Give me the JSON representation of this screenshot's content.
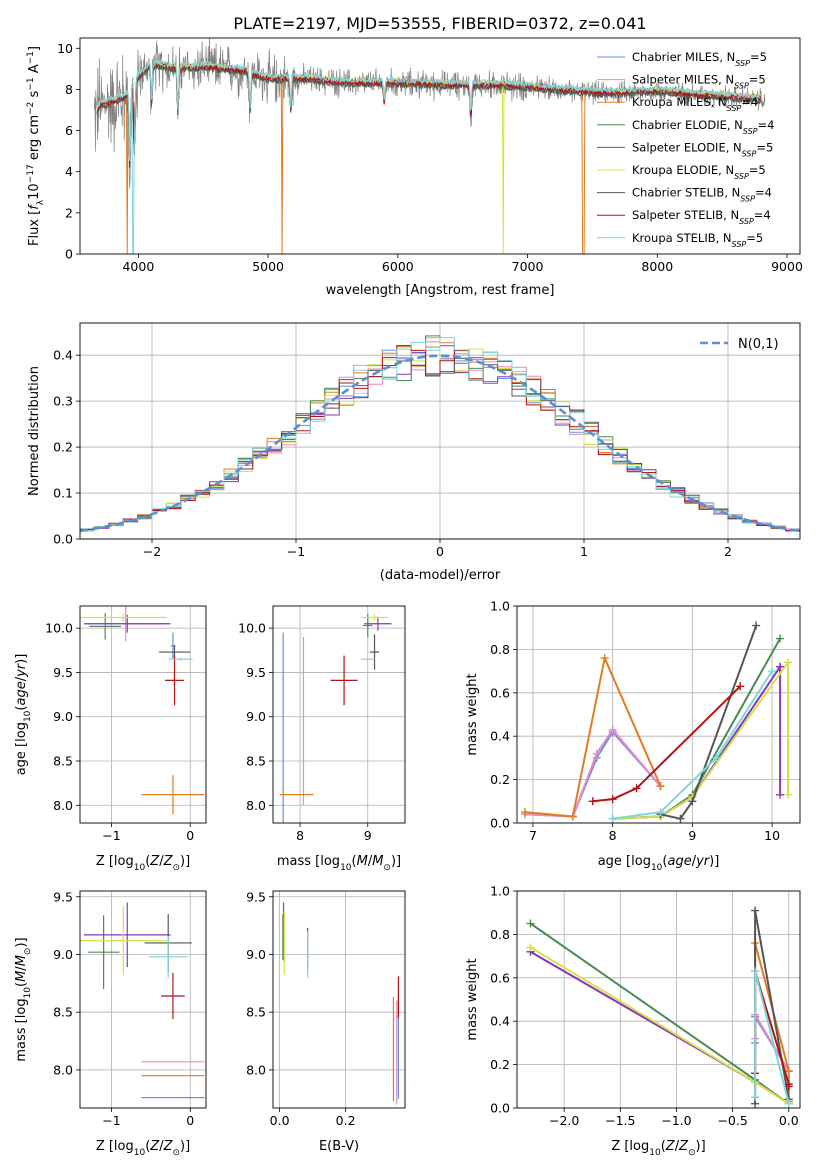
{
  "figure": {
    "title": "PLATE=2197, MJD=53555, FIBERID=0372, z=0.041"
  },
  "colors": {
    "Chabrier MILES": "#6b8fe0",
    "Salpeter MILES": "#e88cc6",
    "Kroupa MILES": "#e07b22",
    "Chabrier ELODIE": "#4a8a55",
    "Salpeter ELODIE": "#8a36b8",
    "Kroupa ELODIE": "#d6e04a",
    "Chabrier STELIB": "#555555",
    "Salpeter STELIB": "#b01414",
    "Kroupa STELIB": "#7fd6d8",
    "normal": "#5b8fd6"
  },
  "chart_data": [
    {
      "id": "spectrum",
      "type": "line",
      "xlabel": "wavelength [Angstrom, rest frame]",
      "ylabel": "Flux [f_λ 10^-17 erg cm^-2 s^-1 A^-1]",
      "xlim": [
        3550,
        9100
      ],
      "ylim": [
        0,
        10.5
      ],
      "xticks": [
        4000,
        5000,
        6000,
        7000,
        8000,
        9000
      ],
      "yticks": [
        0,
        2,
        4,
        6,
        8,
        10
      ],
      "legend_position": "right",
      "continuum": {
        "x": [
          3650,
          3700,
          3800,
          3900,
          4000,
          4100,
          4300,
          4500,
          4800,
          5000,
          5300,
          5600,
          6000,
          6400,
          6800,
          7200,
          7600,
          8000,
          8400,
          8800
        ],
        "y": [
          6.6,
          7.2,
          7.4,
          7.6,
          8.6,
          9.2,
          9.0,
          9.1,
          8.9,
          8.5,
          8.5,
          8.3,
          8.3,
          8.2,
          8.2,
          8.0,
          7.8,
          7.9,
          7.7,
          7.5
        ]
      },
      "series": [
        {
          "name": "Chabrier MILES",
          "label": "Chabrier MILES, N_SSP=5",
          "nssp": "5"
        },
        {
          "name": "Salpeter MILES",
          "label": "Salpeter MILES, N_SSP=5",
          "nssp": "5"
        },
        {
          "name": "Kroupa MILES",
          "label": "Kroupa MILES, N_SSP=4",
          "nssp": "4"
        },
        {
          "name": "Chabrier ELODIE",
          "label": "Chabrier ELODIE, N_SSP=4",
          "nssp": "4"
        },
        {
          "name": "Salpeter ELODIE",
          "label": "Salpeter ELODIE, N_SSP=5",
          "nssp": "5"
        },
        {
          "name": "Kroupa ELODIE",
          "label": "Kroupa ELODIE, N_SSP=5",
          "nssp": "5"
        },
        {
          "name": "Chabrier STELIB",
          "label": "Chabrier STELIB, N_SSP=4",
          "nssp": "4"
        },
        {
          "name": "Salpeter STELIB",
          "label": "Salpeter STELIB, N_SSP=4",
          "nssp": "4"
        },
        {
          "name": "Kroupa STELIB",
          "label": "Kroupa STELIB, N_SSP=5",
          "nssp": "5"
        }
      ]
    },
    {
      "id": "residuals",
      "type": "bar",
      "xlabel": "(data-model)/error",
      "ylabel": "Normed distribution",
      "xlim": [
        -2.5,
        2.5
      ],
      "ylim": [
        0,
        0.47
      ],
      "xticks": [
        -2,
        -1,
        0,
        1,
        2
      ],
      "yticks": [
        0.0,
        0.1,
        0.2,
        0.3,
        0.4
      ],
      "grid": true,
      "bin_width": 0.1,
      "legend": {
        "label": "N(0,1)",
        "position": "top-right"
      }
    },
    {
      "id": "age-vs-Z",
      "type": "scatter",
      "xlabel": "Z [log10(Z/Z⊙)]",
      "ylabel": "age [log10(age/yr)]",
      "xlim": [
        -1.4,
        0.2
      ],
      "ylim": [
        7.8,
        10.25
      ],
      "xticks": [
        -1,
        0
      ],
      "yticks": [
        8.0,
        8.5,
        9.0,
        9.5,
        10.0
      ],
      "grid": true,
      "points": [
        {
          "series": "Chabrier MILES",
          "x": -0.22,
          "y": 9.8,
          "xerr": 0.03,
          "yerr": 0.15
        },
        {
          "series": "Salpeter MILES",
          "x": -0.82,
          "y": 10.05,
          "xerr": 0.5,
          "yerr": 0.2
        },
        {
          "series": "Kroupa MILES",
          "x": -0.22,
          "y": 8.12,
          "xerr": 0.4,
          "yerr": 0.22
        },
        {
          "series": "Chabrier ELODIE",
          "x": -1.08,
          "y": 10.02,
          "xerr": 0.2,
          "yerr": 0.15
        },
        {
          "series": "Salpeter ELODIE",
          "x": -0.8,
          "y": 10.05,
          "xerr": 0.55,
          "yerr": 0.1
        },
        {
          "series": "Kroupa ELODIE",
          "x": -0.85,
          "y": 10.12,
          "xerr": 0.55,
          "yerr": 0.05
        },
        {
          "series": "Chabrier STELIB",
          "x": -0.2,
          "y": 9.73,
          "xerr": 0.2,
          "yerr": 0.08
        },
        {
          "series": "Salpeter STELIB",
          "x": -0.2,
          "y": 9.41,
          "xerr": 0.12,
          "yerr": 0.28
        },
        {
          "series": "Kroupa STELIB",
          "x": -0.12,
          "y": 9.65,
          "xerr": 0.15,
          "yerr": 0.02
        }
      ]
    },
    {
      "id": "age-vs-mass",
      "type": "scatter",
      "xlabel": "mass [log10(M/M⊙)]",
      "ylabel": "",
      "xlim": [
        7.6,
        9.55
      ],
      "ylim": [
        7.8,
        10.25
      ],
      "xticks": [
        8,
        9
      ],
      "yticks": [
        8.0,
        8.5,
        9.0,
        9.5,
        10.0
      ],
      "grid": true,
      "points": [
        {
          "series": "Chabrier MILES",
          "x": 7.75,
          "y": 8.85,
          "xerr": 0.0,
          "yerr": 1.1
        },
        {
          "series": "Salpeter MILES",
          "x": 8.05,
          "y": 8.95,
          "xerr": 0.0,
          "yerr": 0.95
        },
        {
          "series": "Kroupa MILES",
          "x": 7.95,
          "y": 8.12,
          "xerr": 0.25,
          "yerr": 0.0
        },
        {
          "series": "Chabrier ELODIE",
          "x": 9.0,
          "y": 10.03,
          "xerr": 0.07,
          "yerr": 0.13
        },
        {
          "series": "Salpeter ELODIE",
          "x": 9.15,
          "y": 10.05,
          "xerr": 0.2,
          "yerr": 0.08
        },
        {
          "series": "Kroupa ELODIE",
          "x": 9.1,
          "y": 10.12,
          "xerr": 0.2,
          "yerr": 0.04
        },
        {
          "series": "Chabrier STELIB",
          "x": 9.1,
          "y": 9.73,
          "xerr": 0.07,
          "yerr": 0.2
        },
        {
          "series": "Salpeter STELIB",
          "x": 8.65,
          "y": 9.41,
          "xerr": 0.2,
          "yerr": 0.28
        },
        {
          "series": "Kroupa STELIB",
          "x": 9.0,
          "y": 9.65,
          "xerr": 0.1,
          "yerr": 0.0
        }
      ]
    },
    {
      "id": "mass-weight-vs-age",
      "type": "line",
      "xlabel": "age [log10(age/yr)]",
      "ylabel": "mass weight",
      "xlim": [
        6.8,
        10.35
      ],
      "ylim": [
        0,
        1.0
      ],
      "xticks": [
        7,
        8,
        9,
        10
      ],
      "yticks": [
        0.0,
        0.2,
        0.4,
        0.6,
        0.8,
        1.0
      ],
      "grid": true,
      "series": [
        {
          "name": "Chabrier MILES",
          "x": [
            6.9,
            7.5,
            7.8,
            8.0,
            8.6
          ],
          "y": [
            0.04,
            0.03,
            0.3,
            0.42,
            0.17
          ]
        },
        {
          "name": "Salpeter MILES",
          "x": [
            6.9,
            7.5,
            7.8,
            8.0,
            8.6
          ],
          "y": [
            0.04,
            0.03,
            0.32,
            0.43,
            0.17
          ]
        },
        {
          "name": "Kroupa MILES",
          "x": [
            6.9,
            7.5,
            7.9,
            8.6
          ],
          "y": [
            0.05,
            0.03,
            0.76,
            0.17
          ]
        },
        {
          "name": "Chabrier ELODIE",
          "x": [
            8.0,
            8.6,
            9.0,
            10.1
          ],
          "y": [
            0.02,
            0.03,
            0.13,
            0.85
          ]
        },
        {
          "name": "Salpeter ELODIE",
          "x": [
            8.0,
            8.6,
            9.0,
            10.1,
            10.1
          ],
          "y": [
            0.02,
            0.03,
            0.12,
            0.72,
            0.13
          ]
        },
        {
          "name": "Kroupa ELODIE",
          "x": [
            8.0,
            8.6,
            9.0,
            10.2,
            10.2
          ],
          "y": [
            0.02,
            0.03,
            0.12,
            0.74,
            0.13
          ]
        },
        {
          "name": "Chabrier STELIB",
          "x": [
            8.6,
            8.85,
            9.0,
            9.8
          ],
          "y": [
            0.04,
            0.02,
            0.1,
            0.91
          ]
        },
        {
          "name": "Salpeter STELIB",
          "x": [
            7.75,
            8.0,
            8.3,
            9.6
          ],
          "y": [
            0.1,
            0.11,
            0.16,
            0.63
          ]
        },
        {
          "name": "Kroupa STELIB",
          "x": [
            8.0,
            8.6,
            9.3,
            10.0
          ],
          "y": [
            0.02,
            0.05,
            0.3,
            0.7
          ]
        }
      ]
    },
    {
      "id": "mass-vs-Z",
      "type": "scatter",
      "xlabel": "Z [log10(Z/Z⊙)]",
      "ylabel": "mass [log10(M/M⊙)]",
      "xlim": [
        -1.4,
        0.2
      ],
      "ylim": [
        7.67,
        9.55
      ],
      "xticks": [
        -1,
        0
      ],
      "yticks": [
        8.0,
        8.5,
        9.0,
        9.5
      ],
      "grid": true,
      "points": [
        {
          "series": "Chabrier MILES",
          "x": -0.22,
          "y": 7.76,
          "xerr": 0.4,
          "yerr": 0.0
        },
        {
          "series": "Salpeter MILES",
          "x": -0.22,
          "y": 8.07,
          "xerr": 0.4,
          "yerr": 0.0
        },
        {
          "series": "Kroupa MILES",
          "x": -0.22,
          "y": 7.95,
          "xerr": 0.4,
          "yerr": 0.0
        },
        {
          "series": "Chabrier ELODIE",
          "x": -1.1,
          "y": 9.02,
          "xerr": 0.2,
          "yerr": 0.32
        },
        {
          "series": "Salpeter ELODIE",
          "x": -0.8,
          "y": 9.17,
          "xerr": 0.55,
          "yerr": 0.28
        },
        {
          "series": "Kroupa ELODIE",
          "x": -0.85,
          "y": 9.12,
          "xerr": 0.55,
          "yerr": 0.3
        },
        {
          "series": "Chabrier STELIB",
          "x": -0.28,
          "y": 9.1,
          "xerr": 0.3,
          "yerr": 0.25
        },
        {
          "series": "Salpeter STELIB",
          "x": -0.22,
          "y": 8.64,
          "xerr": 0.15,
          "yerr": 0.2
        },
        {
          "series": "Kroupa STELIB",
          "x": -0.28,
          "y": 8.98,
          "xerr": 0.25,
          "yerr": 0.18
        }
      ]
    },
    {
      "id": "mass-vs-EBV",
      "type": "scatter",
      "xlabel": "E(B-V)",
      "ylabel": "",
      "xlim": [
        -0.02,
        0.38
      ],
      "ylim": [
        7.67,
        9.55
      ],
      "xticks": [
        0.0,
        0.2
      ],
      "yticks": [
        8.0,
        8.5,
        9.0,
        9.5
      ],
      "grid": true,
      "points": [
        {
          "series": "Chabrier MILES",
          "x": 0.36,
          "y": 8.2,
          "xerr": 0.0,
          "yerr": 0.45
        },
        {
          "series": "Salpeter MILES",
          "x": 0.355,
          "y": 8.15,
          "xerr": 0.0,
          "yerr": 0.45
        },
        {
          "series": "Kroupa MILES",
          "x": 0.345,
          "y": 8.18,
          "xerr": 0.0,
          "yerr": 0.45
        },
        {
          "series": "Chabrier ELODIE",
          "x": 0.01,
          "y": 9.15,
          "xerr": 0.0,
          "yerr": 0.2
        },
        {
          "series": "Salpeter ELODIE",
          "x": 0.012,
          "y": 9.2,
          "xerr": 0.0,
          "yerr": 0.25
        },
        {
          "series": "Kroupa ELODIE",
          "x": 0.014,
          "y": 9.1,
          "xerr": 0.0,
          "yerr": 0.28
        },
        {
          "series": "Chabrier STELIB",
          "x": 0.085,
          "y": 9.05,
          "xerr": 0.0,
          "yerr": 0.18
        },
        {
          "series": "Salpeter STELIB",
          "x": 0.36,
          "y": 8.63,
          "xerr": 0.0,
          "yerr": 0.18
        },
        {
          "series": "Kroupa STELIB",
          "x": 0.085,
          "y": 9.0,
          "xerr": 0.0,
          "yerr": 0.2
        }
      ]
    },
    {
      "id": "mass-weight-vs-Z",
      "type": "line",
      "xlabel": "Z [log10(Z/Z⊙)]",
      "ylabel": "mass weight",
      "xlim": [
        -2.42,
        0.1
      ],
      "ylim": [
        0,
        1.0
      ],
      "xticks": [
        -2.0,
        -1.5,
        -1.0,
        -0.5,
        0.0
      ],
      "yticks": [
        0.0,
        0.2,
        0.4,
        0.6,
        0.8,
        1.0
      ],
      "grid": true,
      "series": [
        {
          "name": "Chabrier MILES",
          "x": [
            -0.3,
            -0.3,
            -0.3,
            0.0
          ],
          "y": [
            0.3,
            0.42,
            0.42,
            0.17
          ]
        },
        {
          "name": "Salpeter MILES",
          "x": [
            -0.3,
            -0.3,
            -0.3,
            0.0
          ],
          "y": [
            0.32,
            0.43,
            0.43,
            0.17
          ]
        },
        {
          "name": "Kroupa MILES",
          "x": [
            -0.3,
            -0.3,
            0.0,
            0.0
          ],
          "y": [
            0.05,
            0.76,
            0.17,
            0.03
          ]
        },
        {
          "name": "Chabrier ELODIE",
          "x": [
            -2.3,
            -0.3,
            0.0
          ],
          "y": [
            0.85,
            0.13,
            0.02
          ]
        },
        {
          "name": "Salpeter ELODIE",
          "x": [
            -2.3,
            -0.3,
            0.0
          ],
          "y": [
            0.72,
            0.12,
            0.02
          ]
        },
        {
          "name": "Kroupa ELODIE",
          "x": [
            -2.3,
            -0.3,
            0.0
          ],
          "y": [
            0.74,
            0.12,
            0.02
          ]
        },
        {
          "name": "Chabrier STELIB",
          "x": [
            -0.3,
            -0.3,
            0.0
          ],
          "y": [
            0.02,
            0.91,
            0.04
          ]
        },
        {
          "name": "Salpeter STELIB",
          "x": [
            -0.3,
            -0.3,
            0.0,
            0.0
          ],
          "y": [
            0.16,
            0.63,
            0.11,
            0.1
          ]
        },
        {
          "name": "Kroupa STELIB",
          "x": [
            -0.3,
            -0.3,
            0.0
          ],
          "y": [
            0.05,
            0.63,
            0.02
          ]
        }
      ]
    }
  ]
}
